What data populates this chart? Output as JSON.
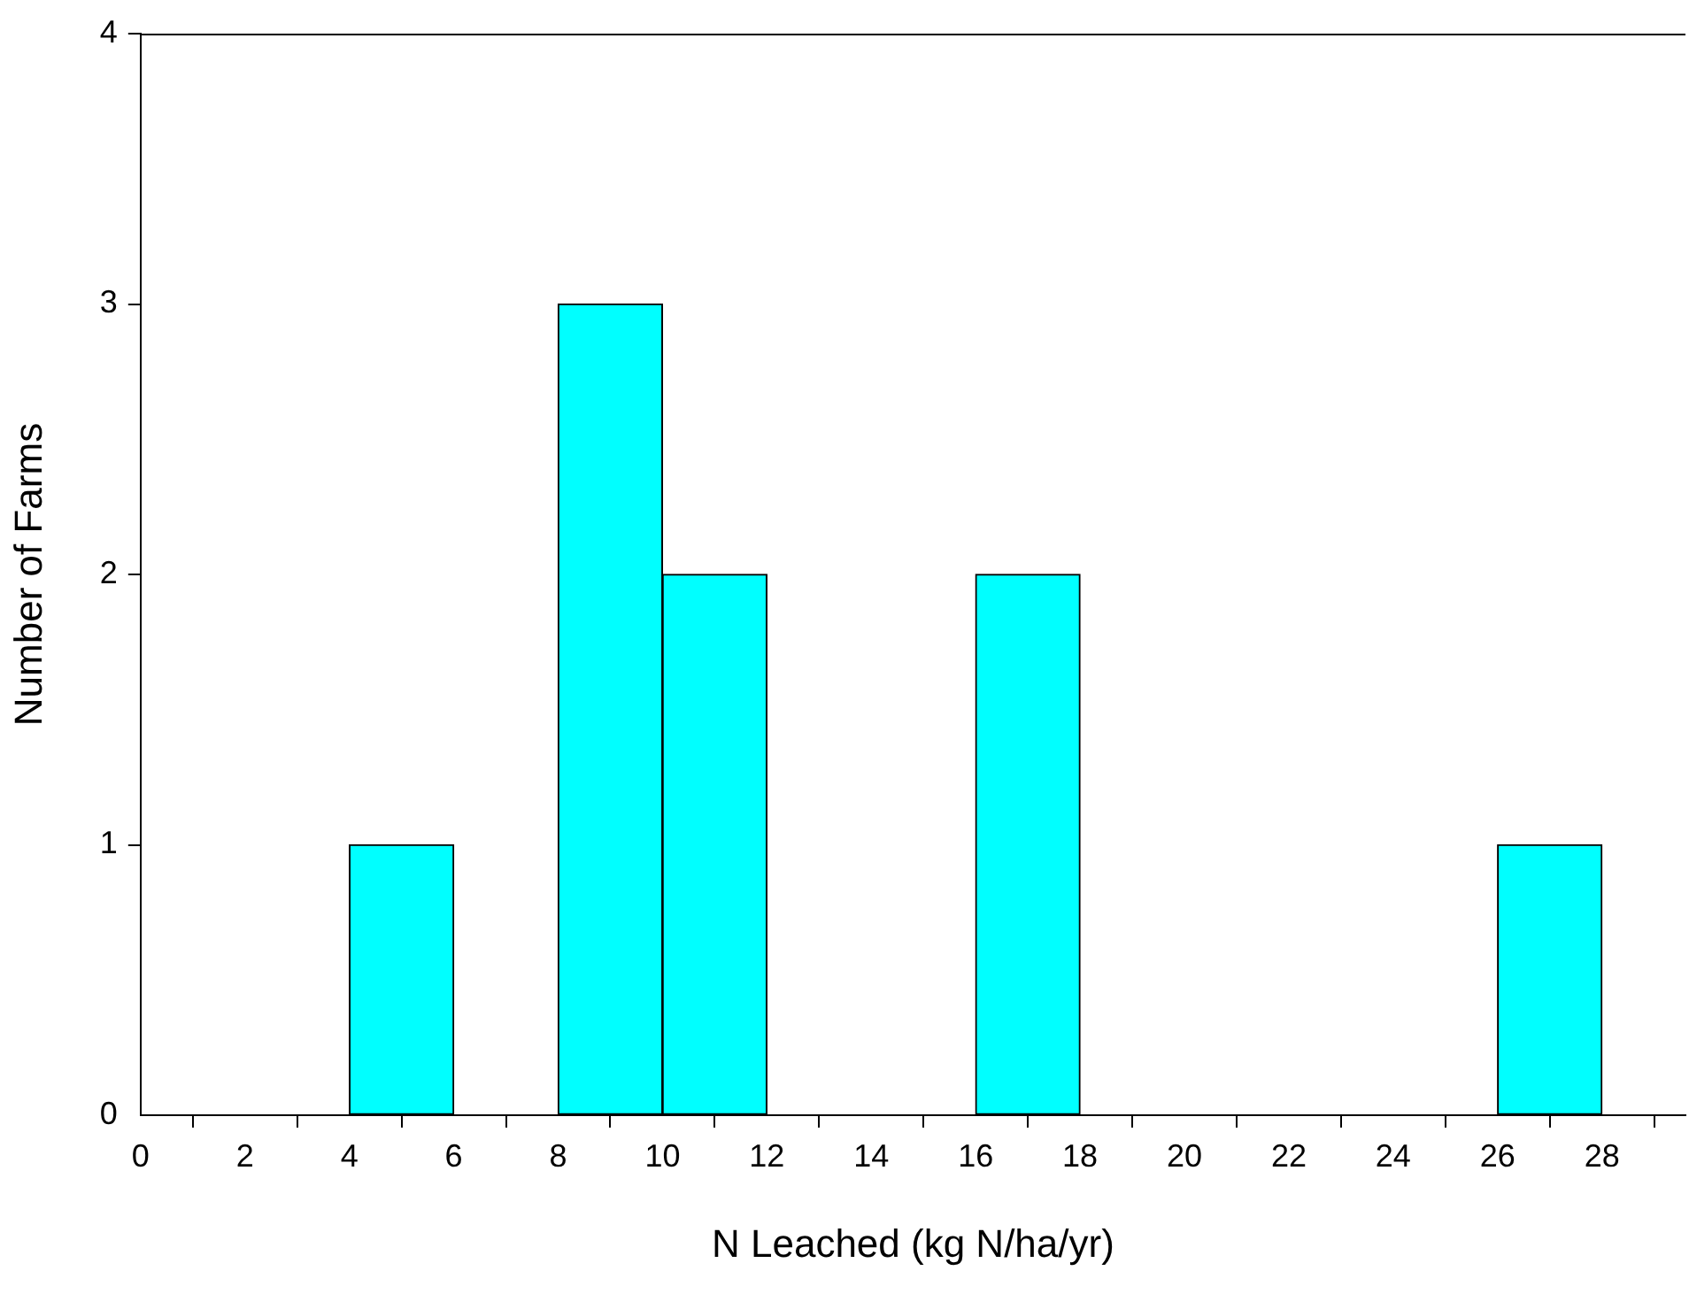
{
  "chart_data": {
    "type": "histogram",
    "xlabel": "N Leached (kg N/ha/yr)",
    "ylabel": "Number of Farms",
    "bins": [
      0,
      2,
      4,
      6,
      8,
      10,
      12,
      14,
      16,
      18,
      20,
      22,
      24,
      26,
      28
    ],
    "values": [
      0,
      0,
      1,
      0,
      3,
      2,
      0,
      0,
      2,
      0,
      0,
      0,
      0,
      1
    ],
    "color": "#00ffff",
    "xlim": [
      0,
      29.6
    ],
    "xticks": [
      0,
      2,
      4,
      6,
      8,
      10,
      12,
      14,
      16,
      18,
      20,
      22,
      24,
      26,
      28
    ],
    "ylim": [
      0,
      4
    ],
    "yticks": [
      0,
      1,
      2,
      3,
      4
    ],
    "grid": false,
    "legend": false
  }
}
